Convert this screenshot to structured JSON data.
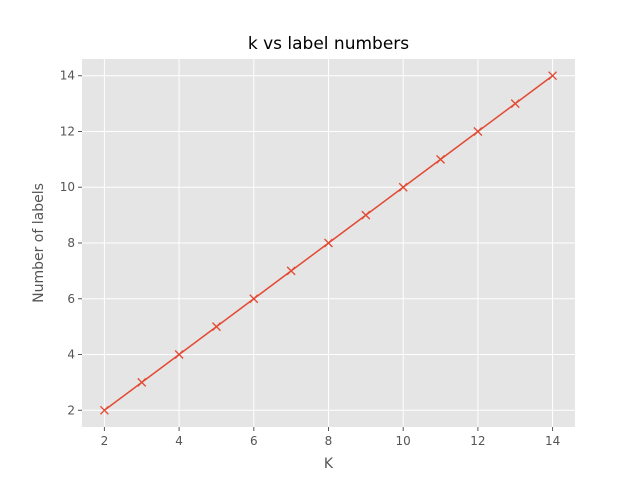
{
  "chart_data": {
    "type": "line",
    "title": "k vs label numbers",
    "xlabel": "K",
    "ylabel": "Number of labels",
    "x": [
      2,
      3,
      4,
      5,
      6,
      7,
      8,
      9,
      10,
      11,
      12,
      13,
      14
    ],
    "series": [
      {
        "values": [
          2,
          3,
          4,
          5,
          6,
          7,
          8,
          9,
          10,
          11,
          12,
          13,
          14
        ],
        "marker": "x",
        "color": "#E24A33"
      }
    ],
    "xlim": [
      1.4,
      14.6
    ],
    "ylim": [
      1.4,
      14.6
    ],
    "xticks": [
      2,
      4,
      6,
      8,
      10,
      12,
      14
    ],
    "yticks": [
      2,
      4,
      6,
      8,
      10,
      12,
      14
    ],
    "xtick_labels": [
      "2",
      "4",
      "6",
      "8",
      "10",
      "12",
      "14"
    ],
    "ytick_labels": [
      "2",
      "4",
      "6",
      "8",
      "10",
      "12",
      "14"
    ],
    "grid": true,
    "style": "ggplot",
    "plot_background": "#E5E5E5",
    "grid_color": "#FFFFFF"
  }
}
